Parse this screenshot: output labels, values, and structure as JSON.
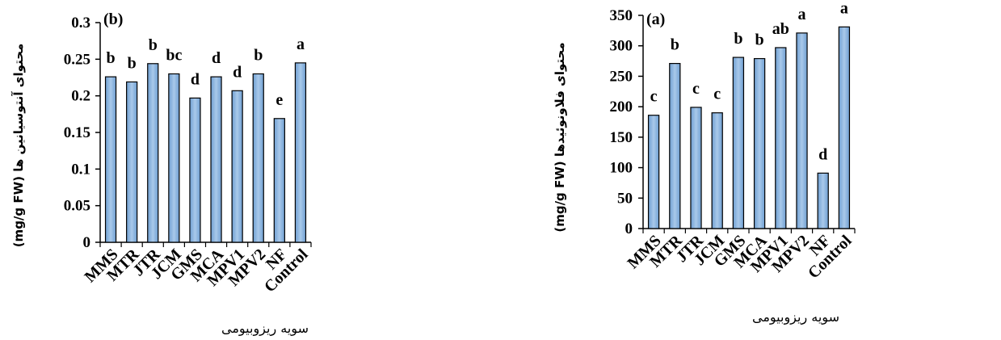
{
  "chart_data": [
    {
      "panel": "(b)",
      "type": "bar",
      "categories": [
        "MMS",
        "MTR",
        "JTR",
        "JCM",
        "GMS",
        "MCA",
        "MPV1",
        "MPV2",
        "NF",
        "Control"
      ],
      "values": [
        0.226,
        0.219,
        0.244,
        0.23,
        0.197,
        0.226,
        0.207,
        0.23,
        0.169,
        0.245
      ],
      "significance_letters": [
        "b",
        "b",
        "b",
        "bc",
        "d",
        "d",
        "d",
        "b",
        "e",
        "a"
      ],
      "ylim": [
        0,
        0.3
      ],
      "yticks": [
        0,
        0.05,
        0.1,
        0.15,
        0.2,
        0.25,
        0.3
      ],
      "ytick_labels": [
        "0",
        "0.05",
        "0.1",
        "0.15",
        "0.2",
        "0.25",
        "0.3"
      ],
      "ylabel": "(mg/g FW) محتوای آنتوسیانین ها",
      "xlabel": "سویه ریزوبیومی",
      "bar_color": "#8fb7df",
      "grid": false
    },
    {
      "panel": "(a)",
      "type": "bar",
      "categories": [
        "MMS",
        "MTR",
        "JTR",
        "JCM",
        "GMS",
        "MCA",
        "MPV1",
        "MPV2",
        "NF",
        "Control"
      ],
      "values": [
        186,
        271,
        199,
        190,
        281,
        279,
        297,
        321,
        91,
        331
      ],
      "significance_letters": [
        "c",
        "b",
        "c",
        "c",
        "b",
        "b",
        "ab",
        "a",
        "d",
        "a"
      ],
      "ylim": [
        0,
        350
      ],
      "yticks": [
        0,
        50,
        100,
        150,
        200,
        250,
        300,
        350
      ],
      "ytick_labels": [
        "0",
        "50",
        "100",
        "150",
        "200",
        "250",
        "300",
        "350"
      ],
      "ylabel": "(mg/g FW) محتوای فلاونوئیدها",
      "xlabel": "سویه ریزوبیومی",
      "bar_color": "#8fb7df",
      "grid": false
    }
  ]
}
